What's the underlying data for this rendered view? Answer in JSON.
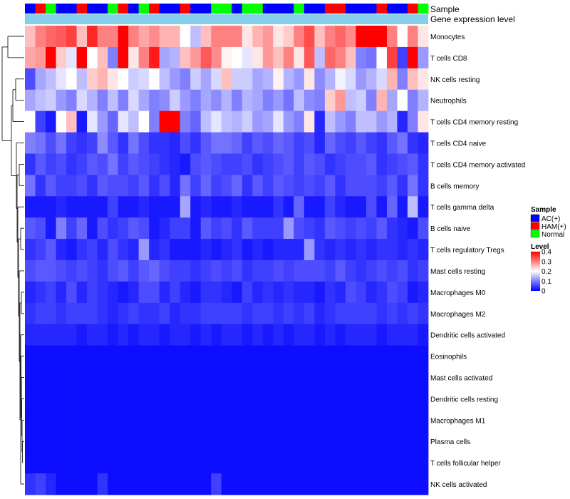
{
  "chart_data": {
    "type": "heatmap",
    "title": "",
    "annotation_labels": [
      "Sample",
      "Gene expression level"
    ],
    "sample_groups": [
      "AC(+)",
      "HAM(+)",
      "Normal",
      "AC(+)",
      "AC(+)",
      "HAM(+)",
      "AC(+)",
      "AC(+)",
      "Normal",
      "HAM(+)",
      "AC(+)",
      "Normal",
      "HAM(+)",
      "AC(+)",
      "AC(+)",
      "HAM(+)",
      "AC(+)",
      "AC(+)",
      "Normal",
      "Normal",
      "AC(+)",
      "Normal",
      "Normal",
      "AC(+)",
      "AC(+)",
      "AC(+)",
      "Normal",
      "AC(+)",
      "AC(+)",
      "HAM(+)",
      "HAM(+)",
      "AC(+)",
      "AC(+)",
      "AC(+)",
      "HAM(+)",
      "AC(+)",
      "AC(+)",
      "HAM(+)",
      "Normal"
    ],
    "rows": [
      {
        "name": "Monocytes",
        "values": [
          0.25,
          0.3,
          0.32,
          0.33,
          0.35,
          0.25,
          0.37,
          0.3,
          0.3,
          0.4,
          0.3,
          0.27,
          0.29,
          0.26,
          0.26,
          0.2,
          0.15,
          0.25,
          0.3,
          0.3,
          0.3,
          0.22,
          0.26,
          0.28,
          0.22,
          0.24,
          0.3,
          0.34,
          0.25,
          0.3,
          0.32,
          0.29,
          0.4,
          0.4,
          0.4,
          0.3,
          0.2,
          0.3,
          0.22
        ]
      },
      {
        "name": "T cells CD8",
        "values": [
          0.27,
          0.28,
          0.4,
          0.24,
          0.18,
          0.4,
          0.2,
          0.25,
          0.1,
          0.4,
          0.22,
          0.3,
          0.38,
          0.13,
          0.14,
          0.25,
          0.28,
          0.33,
          0.29,
          0.21,
          0.2,
          0.18,
          0.22,
          0.28,
          0.25,
          0.3,
          0.22,
          0.33,
          0.15,
          0.32,
          0.3,
          0.25,
          0.1,
          0.09,
          0.2,
          0.35,
          0.05,
          0.4,
          0.12
        ]
      },
      {
        "name": "NK cells resting",
        "values": [
          0.06,
          0.13,
          0.15,
          0.18,
          0.2,
          0.15,
          0.24,
          0.26,
          0.22,
          0.2,
          0.16,
          0.17,
          0.2,
          0.15,
          0.12,
          0.1,
          0.16,
          0.13,
          0.17,
          0.25,
          0.16,
          0.16,
          0.13,
          0.14,
          0.21,
          0.14,
          0.12,
          0.22,
          0.11,
          0.14,
          0.19,
          0.17,
          0.12,
          0.14,
          0.17,
          0.26,
          0.1,
          0.25,
          0.22
        ]
      },
      {
        "name": "Neutrophils",
        "values": [
          0.13,
          0.15,
          0.16,
          0.12,
          0.1,
          0.17,
          0.14,
          0.1,
          0.15,
          0.1,
          0.17,
          0.13,
          0.1,
          0.11,
          0.16,
          0.12,
          0.1,
          0.13,
          0.11,
          0.14,
          0.1,
          0.14,
          0.13,
          0.1,
          0.12,
          0.09,
          0.15,
          0.11,
          0.1,
          0.24,
          0.28,
          0.15,
          0.16,
          0.1,
          0.26,
          0.13,
          0.2,
          0.1,
          0.14
        ]
      },
      {
        "name": "T cells CD4 memory resting",
        "values": [
          0.2,
          0.05,
          0.02,
          0.2,
          0.25,
          0.02,
          0.18,
          0.12,
          0.08,
          0.18,
          0.15,
          0.2,
          0.1,
          0.4,
          0.4,
          0.1,
          0.08,
          0.15,
          0.18,
          0.15,
          0.14,
          0.16,
          0.12,
          0.13,
          0.18,
          0.12,
          0.1,
          0.22,
          0.03,
          0.15,
          0.12,
          0.1,
          0.15,
          0.15,
          0.12,
          0.14,
          0.03,
          0.1,
          0.22
        ]
      },
      {
        "name": "T cells CD4 naive",
        "values": [
          0.1,
          0.09,
          0.06,
          0.09,
          0.05,
          0.04,
          0.05,
          0.11,
          0.07,
          0.04,
          0.09,
          0.06,
          0.04,
          0.04,
          0.03,
          0.06,
          0.04,
          0.07,
          0.09,
          0.09,
          0.08,
          0.05,
          0.07,
          0.06,
          0.08,
          0.07,
          0.05,
          0.06,
          0.03,
          0.08,
          0.06,
          0.05,
          0.07,
          0.05,
          0.04,
          0.07,
          0.09,
          0.04,
          0.03
        ]
      },
      {
        "name": "T cells CD4 memory activated",
        "values": [
          0.04,
          0.07,
          0.05,
          0.06,
          0.04,
          0.05,
          0.07,
          0.06,
          0.09,
          0.05,
          0.07,
          0.06,
          0.05,
          0.04,
          0.03,
          0.02,
          0.06,
          0.07,
          0.06,
          0.05,
          0.05,
          0.06,
          0.04,
          0.05,
          0.06,
          0.07,
          0.05,
          0.07,
          0.06,
          0.04,
          0.05,
          0.06,
          0.06,
          0.07,
          0.04,
          0.05,
          0.06,
          0.07,
          0.04
        ]
      },
      {
        "name": "B cells memory",
        "values": [
          0.09,
          0.04,
          0.07,
          0.05,
          0.05,
          0.06,
          0.04,
          0.07,
          0.06,
          0.06,
          0.05,
          0.07,
          0.04,
          0.06,
          0.03,
          0.09,
          0.05,
          0.08,
          0.05,
          0.06,
          0.08,
          0.04,
          0.07,
          0.05,
          0.07,
          0.06,
          0.05,
          0.06,
          0.05,
          0.07,
          0.04,
          0.06,
          0.06,
          0.06,
          0.05,
          0.07,
          0.04,
          0.09,
          0.04
        ]
      },
      {
        "name": "T cells gamma delta",
        "values": [
          0.02,
          0.02,
          0.02,
          0.03,
          0.02,
          0.02,
          0.02,
          0.02,
          0.05,
          0.02,
          0.02,
          0.03,
          0.02,
          0.02,
          0.02,
          0.13,
          0.02,
          0.03,
          0.02,
          0.02,
          0.03,
          0.02,
          0.02,
          0.02,
          0.04,
          0.02,
          0.08,
          0.02,
          0.02,
          0.05,
          0.03,
          0.02,
          0.02,
          0.06,
          0.02,
          0.08,
          0.02,
          0.15,
          0.02
        ]
      },
      {
        "name": "B cells naive",
        "values": [
          0.07,
          0.06,
          0.02,
          0.1,
          0.05,
          0.08,
          0.02,
          0.06,
          0.04,
          0.05,
          0.07,
          0.06,
          0.02,
          0.03,
          0.05,
          0.05,
          0.02,
          0.07,
          0.05,
          0.06,
          0.04,
          0.07,
          0.05,
          0.05,
          0.05,
          0.12,
          0.06,
          0.05,
          0.04,
          0.07,
          0.06,
          0.05,
          0.06,
          0.05,
          0.07,
          0.04,
          0.03,
          0.02,
          0.06
        ]
      },
      {
        "name": "T cells regulatory  Tregs",
        "values": [
          0.04,
          0.05,
          0.07,
          0.03,
          0.02,
          0.04,
          0.05,
          0.03,
          0.06,
          0.04,
          0.03,
          0.12,
          0.03,
          0.04,
          0.02,
          0.02,
          0.02,
          0.03,
          0.02,
          0.03,
          0.04,
          0.02,
          0.03,
          0.02,
          0.03,
          0.03,
          0.03,
          0.12,
          0.04,
          0.03,
          0.04,
          0.03,
          0.04,
          0.03,
          0.04,
          0.04,
          0.03,
          0.04,
          0.03
        ]
      },
      {
        "name": "Mast cells resting",
        "values": [
          0.06,
          0.07,
          0.07,
          0.06,
          0.05,
          0.06,
          0.05,
          0.04,
          0.06,
          0.07,
          0.05,
          0.07,
          0.08,
          0.06,
          0.05,
          0.05,
          0.04,
          0.05,
          0.06,
          0.05,
          0.06,
          0.04,
          0.05,
          0.05,
          0.06,
          0.05,
          0.06,
          0.06,
          0.06,
          0.05,
          0.07,
          0.05,
          0.04,
          0.05,
          0.06,
          0.05,
          0.06,
          0.04,
          0.05
        ]
      },
      {
        "name": "Macrophages M0",
        "values": [
          0.03,
          0.04,
          0.05,
          0.03,
          0.06,
          0.03,
          0.05,
          0.04,
          0.03,
          0.02,
          0.03,
          0.06,
          0.06,
          0.03,
          0.05,
          0.03,
          0.02,
          0.04,
          0.04,
          0.03,
          0.02,
          0.05,
          0.03,
          0.04,
          0.03,
          0.04,
          0.03,
          0.03,
          0.02,
          0.04,
          0.03,
          0.06,
          0.05,
          0.03,
          0.04,
          0.06,
          0.05,
          0.02,
          0.03
        ]
      },
      {
        "name": "Macrophages M2",
        "values": [
          0.04,
          0.05,
          0.05,
          0.04,
          0.05,
          0.05,
          0.05,
          0.04,
          0.03,
          0.04,
          0.05,
          0.04,
          0.04,
          0.05,
          0.03,
          0.04,
          0.04,
          0.05,
          0.05,
          0.05,
          0.05,
          0.04,
          0.05,
          0.05,
          0.04,
          0.05,
          0.04,
          0.05,
          0.03,
          0.04,
          0.05,
          0.05,
          0.05,
          0.05,
          0.04,
          0.05,
          0.04,
          0.05,
          0.04
        ]
      },
      {
        "name": "Dendritic cells activated",
        "values": [
          0.03,
          0.03,
          0.03,
          0.03,
          0.03,
          0.02,
          0.03,
          0.03,
          0.02,
          0.03,
          0.02,
          0.03,
          0.03,
          0.02,
          0.03,
          0.03,
          0.02,
          0.03,
          0.02,
          0.03,
          0.03,
          0.02,
          0.03,
          0.02,
          0.03,
          0.02,
          0.03,
          0.03,
          0.02,
          0.03,
          0.02,
          0.03,
          0.03,
          0.03,
          0.02,
          0.03,
          0.03,
          0.03,
          0.02
        ]
      },
      {
        "name": "Eosinophils",
        "values": [
          0.01,
          0.01,
          0.01,
          0.01,
          0.01,
          0.01,
          0.01,
          0.01,
          0.01,
          0.01,
          0.01,
          0.01,
          0.01,
          0.01,
          0.01,
          0.01,
          0.01,
          0.01,
          0.01,
          0.01,
          0.01,
          0.01,
          0.01,
          0.01,
          0.01,
          0.01,
          0.01,
          0.01,
          0.01,
          0.01,
          0.01,
          0.01,
          0.01,
          0.01,
          0.01,
          0.01,
          0.01,
          0.01,
          0.01
        ]
      },
      {
        "name": "Mast cells activated",
        "values": [
          0.01,
          0.01,
          0.01,
          0.01,
          0.01,
          0.01,
          0.01,
          0.01,
          0.01,
          0.01,
          0.01,
          0.01,
          0.01,
          0.01,
          0.01,
          0.01,
          0.01,
          0.01,
          0.01,
          0.01,
          0.01,
          0.01,
          0.01,
          0.01,
          0.01,
          0.01,
          0.01,
          0.01,
          0.01,
          0.01,
          0.01,
          0.01,
          0.01,
          0.01,
          0.01,
          0.01,
          0.01,
          0.01,
          0.01
        ]
      },
      {
        "name": "Dendritic cells resting",
        "values": [
          0.01,
          0.01,
          0.01,
          0.01,
          0.01,
          0.01,
          0.01,
          0.01,
          0.01,
          0.01,
          0.01,
          0.01,
          0.01,
          0.01,
          0.01,
          0.01,
          0.01,
          0.01,
          0.01,
          0.01,
          0.01,
          0.01,
          0.01,
          0.01,
          0.01,
          0.01,
          0.01,
          0.01,
          0.01,
          0.01,
          0.01,
          0.01,
          0.01,
          0.01,
          0.01,
          0.01,
          0.01,
          0.01,
          0.01
        ]
      },
      {
        "name": "Macrophages M1",
        "values": [
          0.01,
          0.01,
          0.01,
          0.01,
          0.01,
          0.01,
          0.01,
          0.01,
          0.01,
          0.01,
          0.01,
          0.01,
          0.01,
          0.01,
          0.01,
          0.01,
          0.01,
          0.01,
          0.01,
          0.01,
          0.01,
          0.01,
          0.01,
          0.01,
          0.01,
          0.01,
          0.01,
          0.01,
          0.01,
          0.01,
          0.01,
          0.01,
          0.01,
          0.01,
          0.01,
          0.01,
          0.01,
          0.01,
          0.01
        ]
      },
      {
        "name": "Plasma cells",
        "values": [
          0.01,
          0.01,
          0.01,
          0.01,
          0.01,
          0.01,
          0.01,
          0.01,
          0.01,
          0.01,
          0.01,
          0.01,
          0.01,
          0.01,
          0.01,
          0.01,
          0.01,
          0.01,
          0.01,
          0.01,
          0.01,
          0.01,
          0.01,
          0.01,
          0.01,
          0.01,
          0.01,
          0.01,
          0.01,
          0.01,
          0.01,
          0.01,
          0.01,
          0.01,
          0.01,
          0.01,
          0.01,
          0.01,
          0.01
        ]
      },
      {
        "name": "T cells follicular helper",
        "values": [
          0.01,
          0.01,
          0.01,
          0.01,
          0.01,
          0.01,
          0.01,
          0.01,
          0.01,
          0.01,
          0.01,
          0.01,
          0.01,
          0.01,
          0.01,
          0.01,
          0.01,
          0.01,
          0.01,
          0.01,
          0.01,
          0.01,
          0.01,
          0.01,
          0.01,
          0.01,
          0.01,
          0.01,
          0.01,
          0.01,
          0.01,
          0.01,
          0.01,
          0.01,
          0.01,
          0.01,
          0.01,
          0.01,
          0.01
        ]
      },
      {
        "name": "NK cells activated",
        "values": [
          0.04,
          0.05,
          0.03,
          0.01,
          0.01,
          0.01,
          0.01,
          0.04,
          0.01,
          0.01,
          0.01,
          0.01,
          0.01,
          0.01,
          0.01,
          0.01,
          0.01,
          0.01,
          0.05,
          0.01,
          0.01,
          0.01,
          0.01,
          0.01,
          0.01,
          0.01,
          0.01,
          0.01,
          0.01,
          0.01,
          0.01,
          0.01,
          0.01,
          0.01,
          0.01,
          0.01,
          0.01,
          0.01,
          0.01
        ]
      }
    ],
    "legend": {
      "sample_title": "Sample",
      "sample_entries": [
        {
          "label": "AC(+)",
          "color": "#0000ff"
        },
        {
          "label": "HAM(+)",
          "color": "#ff0000"
        },
        {
          "label": "Normal",
          "color": "#00ff00"
        }
      ],
      "level_title": "Level",
      "level_ticks": [
        0.4,
        0.3,
        0.2,
        0.1,
        0
      ],
      "level_range": [
        0,
        0.4
      ]
    },
    "colors": {
      "low": "#0000ff",
      "mid": "#ffffff",
      "high": "#ff0000",
      "expression_bar": "#87ceeb",
      "dendrogram": "#000000"
    }
  }
}
